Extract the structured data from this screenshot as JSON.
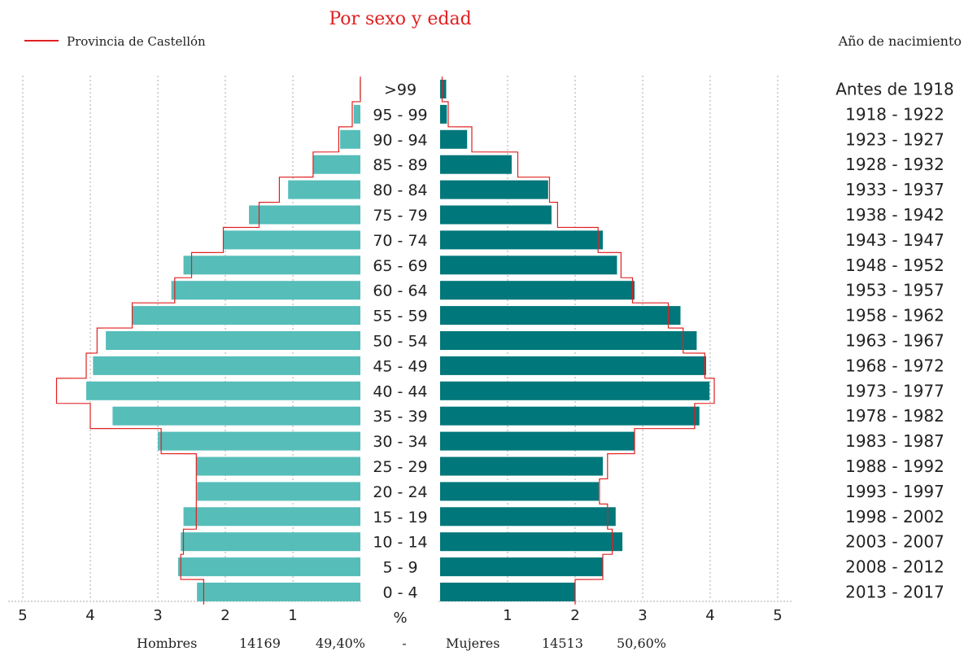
{
  "chart_data": {
    "type": "bar",
    "title": "Por sexo y edad",
    "legend": {
      "label": "Provincia de Castellón",
      "color": "#e02020",
      "placement": "top-left"
    },
    "right_header": "Año de nacimiento",
    "unit_label": "%",
    "x_ticks_left": [
      "5",
      "4",
      "3",
      "2",
      "1"
    ],
    "x_ticks_right": [
      "1",
      "2",
      "3",
      "4",
      "5"
    ],
    "xlim": [
      0,
      5
    ],
    "categories": [
      ">99",
      "95 - 99",
      "90 - 94",
      "85 - 89",
      "80 - 84",
      "75 - 79",
      "70 - 74",
      "65 - 69",
      "60 - 64",
      "55 - 59",
      "50 - 54",
      "45 - 49",
      "40 - 44",
      "35 - 39",
      "30 - 34",
      "25 - 29",
      "20 - 24",
      "15 - 19",
      "10 - 14",
      "5 - 9",
      "0 - 4"
    ],
    "birth_years": [
      "Antes de 1918",
      "1918 - 1922",
      "1923 - 1927",
      "1928 - 1932",
      "1933 - 1937",
      "1938 - 1942",
      "1943 - 1947",
      "1948 - 1952",
      "1953 - 1957",
      "1958 - 1962",
      "1963 - 1967",
      "1968 - 1972",
      "1973 - 1977",
      "1978 - 1982",
      "1983 - 1987",
      "1988 - 1992",
      "1993 - 1997",
      "1998 - 2002",
      "2003 - 2007",
      "2008 - 2012",
      "2013 - 2017"
    ],
    "series": [
      {
        "name": "Hombres",
        "color": "#56bdb9",
        "values": [
          0.01,
          0.1,
          0.3,
          0.7,
          1.07,
          1.65,
          2.03,
          2.62,
          2.8,
          3.38,
          3.77,
          3.96,
          4.06,
          3.67,
          3.0,
          2.43,
          2.42,
          2.62,
          2.66,
          2.7,
          2.42
        ]
      },
      {
        "name": "Mujeres",
        "color": "#00777a",
        "values": [
          0.09,
          0.1,
          0.4,
          1.06,
          1.6,
          1.65,
          2.41,
          2.62,
          2.88,
          3.56,
          3.8,
          3.94,
          3.99,
          3.84,
          2.88,
          2.41,
          2.35,
          2.6,
          2.7,
          2.41,
          2.0
        ]
      },
      {
        "name": "Provincia de Castellón - Hombres",
        "color": "#e02020",
        "values": [
          0.0,
          0.12,
          0.32,
          0.7,
          1.2,
          1.5,
          2.03,
          2.5,
          2.75,
          3.38,
          3.9,
          4.06,
          4.5,
          4.0,
          2.95,
          2.43,
          2.43,
          2.43,
          2.62,
          2.66,
          2.32
        ]
      },
      {
        "name": "Provincia de Castellón - Mujeres",
        "color": "#e02020",
        "values": [
          0.03,
          0.12,
          0.47,
          1.15,
          1.62,
          1.74,
          2.34,
          2.68,
          2.85,
          3.38,
          3.6,
          3.92,
          4.06,
          3.77,
          2.88,
          2.48,
          2.36,
          2.48,
          2.55,
          2.41,
          2.0
        ]
      }
    ],
    "grid": true
  },
  "footer": {
    "men_label": "Hombres",
    "men_count": "14169",
    "men_pct": "49,40%",
    "separator": "-",
    "women_label": "Mujeres",
    "women_count": "14513",
    "women_pct": "50,60%"
  }
}
